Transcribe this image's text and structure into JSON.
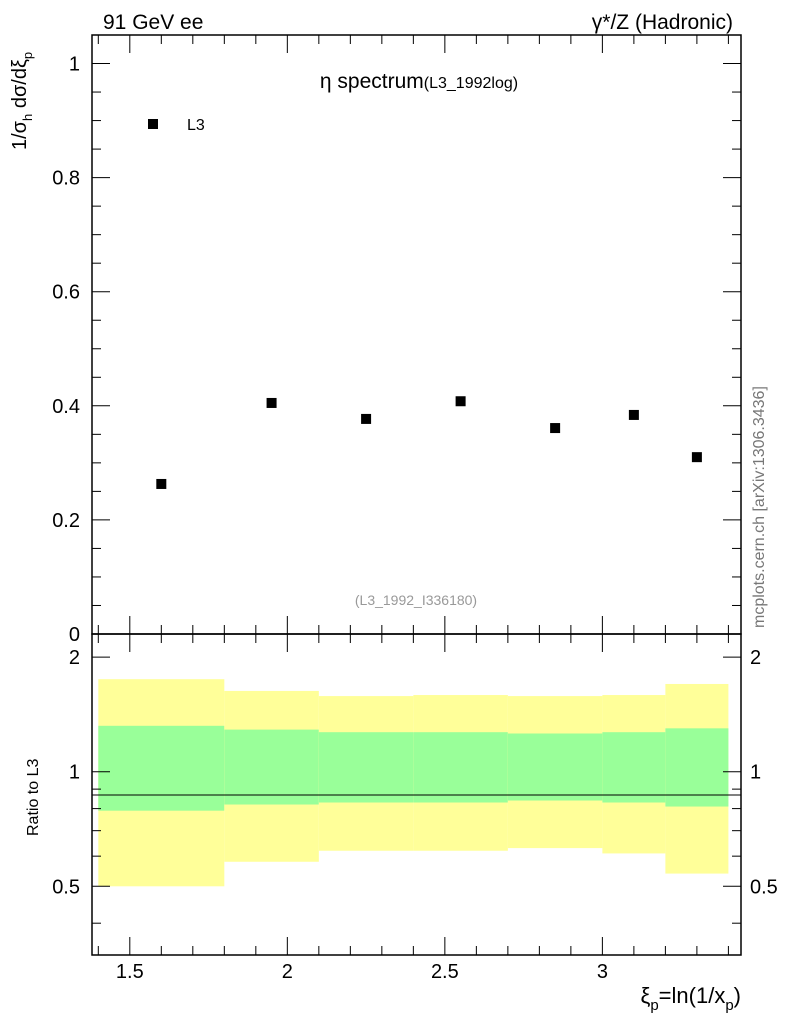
{
  "header": {
    "left": "91 GeV ee",
    "right": "γ*/Z (Hadronic)"
  },
  "watermark": "mcplots.cern.ch [arXiv:1306.3436]",
  "chart_data": {
    "type": "scatter",
    "title_main": "η spectrum",
    "title_sub": "(L3_1992log)",
    "analysis_label": "(L3_1992_I336180)",
    "xlabel_xi": "ξ",
    "xlabel_sub": "p",
    "xlabel_rest": "=ln(1/x",
    "xlabel_sub2": "p",
    "xlabel_close": ")",
    "ylabel": "1/σ_h dσ/dξ_p",
    "ratio_ylabel": "Ratio to L3",
    "xlim": [
      1.38,
      3.44
    ],
    "ylim": [
      0,
      1.05
    ],
    "ratio_ylim": [
      0.33,
      2.3
    ],
    "x_ticks": [
      "1.5",
      "2",
      "2.5",
      "3"
    ],
    "y_ticks": [
      "0",
      "0.2",
      "0.4",
      "0.6",
      "0.8",
      "1"
    ],
    "ratio_ticks": [
      "0.5",
      "1",
      "2"
    ],
    "legend": {
      "position": "top-left",
      "entries": [
        {
          "name": "L3",
          "marker": "square",
          "color": "#000000"
        }
      ]
    },
    "series": [
      {
        "name": "L3",
        "x": [
          1.6,
          1.95,
          2.25,
          2.55,
          2.85,
          3.1,
          3.3
        ],
        "y": [
          0.263,
          0.405,
          0.377,
          0.408,
          0.361,
          0.384,
          0.31
        ]
      }
    ],
    "ratio_bands": {
      "bins": [
        [
          1.4,
          1.8
        ],
        [
          1.8,
          2.1
        ],
        [
          2.1,
          2.4
        ],
        [
          2.4,
          2.7
        ],
        [
          2.7,
          3.0
        ],
        [
          3.0,
          3.2
        ],
        [
          3.2,
          3.4
        ]
      ],
      "inner": [
        [
          0.79,
          1.32
        ],
        [
          0.82,
          1.29
        ],
        [
          0.83,
          1.27
        ],
        [
          0.83,
          1.27
        ],
        [
          0.84,
          1.26
        ],
        [
          0.83,
          1.27
        ],
        [
          0.81,
          1.3
        ]
      ],
      "outer": [
        [
          0.5,
          1.75
        ],
        [
          0.58,
          1.63
        ],
        [
          0.62,
          1.58
        ],
        [
          0.62,
          1.59
        ],
        [
          0.63,
          1.58
        ],
        [
          0.61,
          1.59
        ],
        [
          0.54,
          1.7
        ]
      ],
      "inner_color": "#99ff99",
      "outer_color": "#ffff99"
    }
  }
}
